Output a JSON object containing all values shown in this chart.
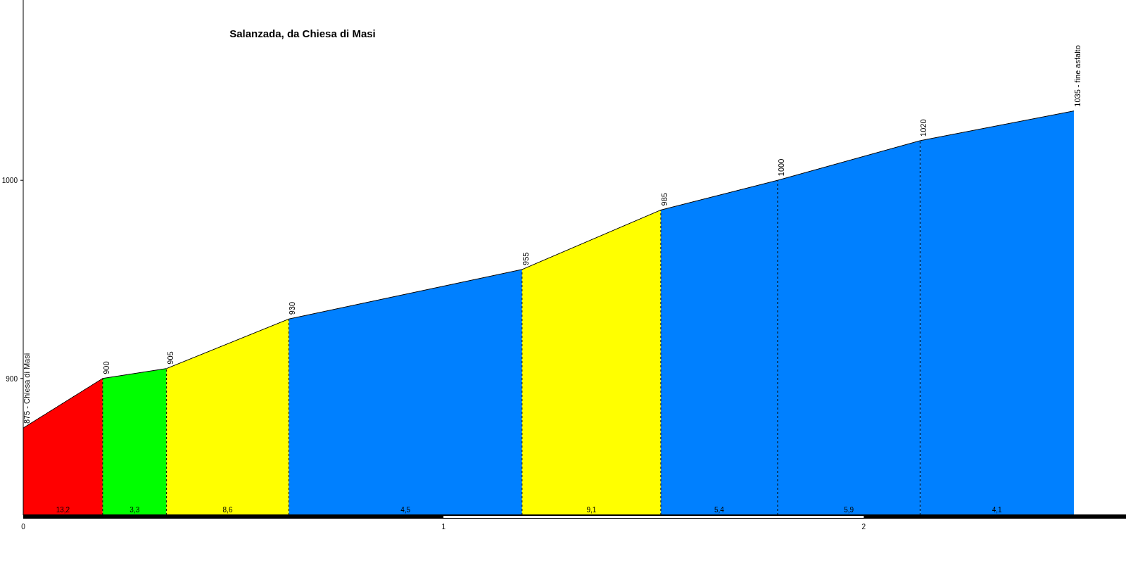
{
  "chart_data": {
    "type": "area",
    "title": "Salanzada, da Chiesa di Masi",
    "xlim": [
      0,
      2.624
    ],
    "ylim": [
      831,
      1091
    ],
    "xticks": [
      0,
      1,
      2
    ],
    "yticks": [
      900,
      1000
    ],
    "grid": false,
    "series": [
      {
        "color": "#ff0000",
        "x": [
          0,
          0.189
        ],
        "values": [
          875,
          900
        ]
      },
      {
        "color": "#00ff00",
        "x": [
          0.189,
          0.341
        ],
        "values": [
          900,
          905
        ]
      },
      {
        "color": "#ffff00",
        "x": [
          0.341,
          0.632
        ],
        "values": [
          905,
          930
        ]
      },
      {
        "color": "#0080ff",
        "x": [
          0.632,
          1.187
        ],
        "values": [
          930,
          955
        ]
      },
      {
        "color": "#ffff00",
        "x": [
          1.187,
          1.517
        ],
        "values": [
          955,
          985
        ]
      },
      {
        "color": "#0080ff",
        "x": [
          1.517,
          1.795
        ],
        "values": [
          985,
          1000
        ]
      },
      {
        "color": "#0080ff",
        "x": [
          1.795,
          2.134
        ],
        "values": [
          1000,
          1020
        ]
      },
      {
        "color": "#0080ff",
        "x": [
          2.134,
          2.5
        ],
        "values": [
          1020,
          1035
        ]
      }
    ],
    "ref_lines": [
      {
        "axis": "x",
        "value": 0.189,
        "line_style": "dashed"
      },
      {
        "axis": "x",
        "value": 0.341,
        "line_style": "dashed"
      },
      {
        "axis": "x",
        "value": 0.632,
        "line_style": "dashed"
      },
      {
        "axis": "x",
        "value": 1.187,
        "line_style": "dashed"
      },
      {
        "axis": "x",
        "value": 1.517,
        "line_style": "dashed"
      },
      {
        "axis": "x",
        "value": 1.795,
        "line_style": "dashed"
      },
      {
        "axis": "x",
        "value": 2.134,
        "line_style": "dashed"
      }
    ],
    "annotations": [
      {
        "text": "875 - Chiesa di Masi",
        "x": 0,
        "y": 875
      },
      {
        "text": "900",
        "x": 0.189,
        "y": 900
      },
      {
        "text": "905",
        "x": 0.341,
        "y": 905
      },
      {
        "text": "930",
        "x": 0.632,
        "y": 930
      },
      {
        "text": "955",
        "x": 1.187,
        "y": 955
      },
      {
        "text": "985",
        "x": 1.517,
        "y": 985
      },
      {
        "text": "1000",
        "x": 1.795,
        "y": 1000
      },
      {
        "text": "1020",
        "x": 2.134,
        "y": 1020
      },
      {
        "text": "1035 - fine asfalto",
        "x": 2.5,
        "y": 1035
      },
      {
        "text": "13,2",
        "x": 0.0945,
        "y": 831
      },
      {
        "text": "3,3",
        "x": 0.265,
        "y": 831
      },
      {
        "text": "8,6",
        "x": 0.4865,
        "y": 831
      },
      {
        "text": "4,5",
        "x": 0.9095,
        "y": 831
      },
      {
        "text": "9,1",
        "x": 1.352,
        "y": 831
      },
      {
        "text": "5,4",
        "x": 1.656,
        "y": 831
      },
      {
        "text": "5,9",
        "x": 1.9645,
        "y": 831
      },
      {
        "text": "4,1",
        "x": 2.317,
        "y": 831
      }
    ]
  }
}
